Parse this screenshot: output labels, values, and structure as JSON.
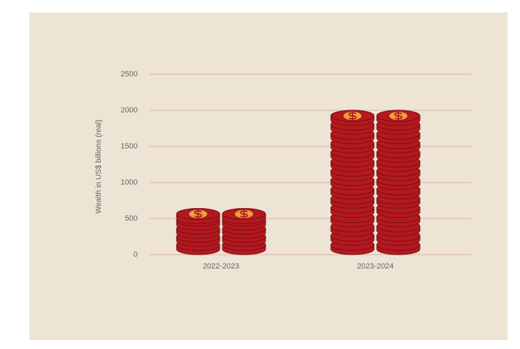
{
  "chart_data": {
    "type": "coin-stack",
    "y_label": "Wealth in US$ billions (real)",
    "categories": [
      "2022-2023",
      "2023-2024"
    ],
    "values": [
      640,
      2000
    ],
    "color": "#b3191f",
    "ylim": [
      0,
      2500
    ],
    "yticks": [
      0,
      500,
      1000,
      1500,
      2000,
      2500
    ],
    "grid": true
  }
}
